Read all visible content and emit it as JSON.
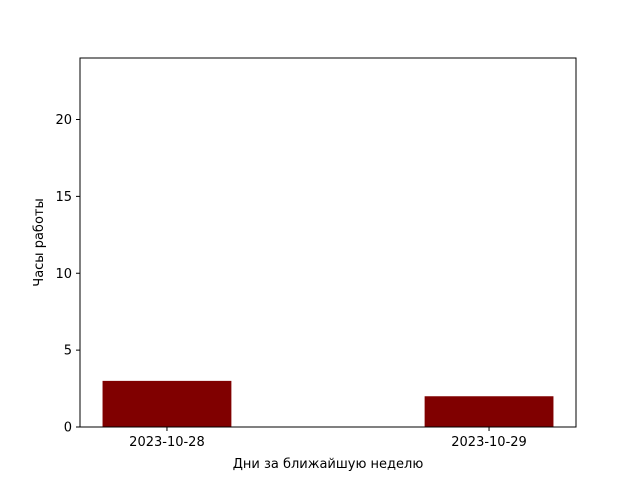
{
  "chart_data": {
    "type": "bar",
    "title": "",
    "xlabel": "Дни за ближайшую неделю",
    "ylabel": "Часы работы",
    "categories": [
      "2023-10-28",
      "2023-10-29"
    ],
    "values": [
      3,
      2
    ],
    "ylim": [
      0,
      24
    ],
    "yticks": [
      0,
      5,
      10,
      15,
      20
    ],
    "bar_color": "#800000",
    "grid": false,
    "legend": "none"
  }
}
